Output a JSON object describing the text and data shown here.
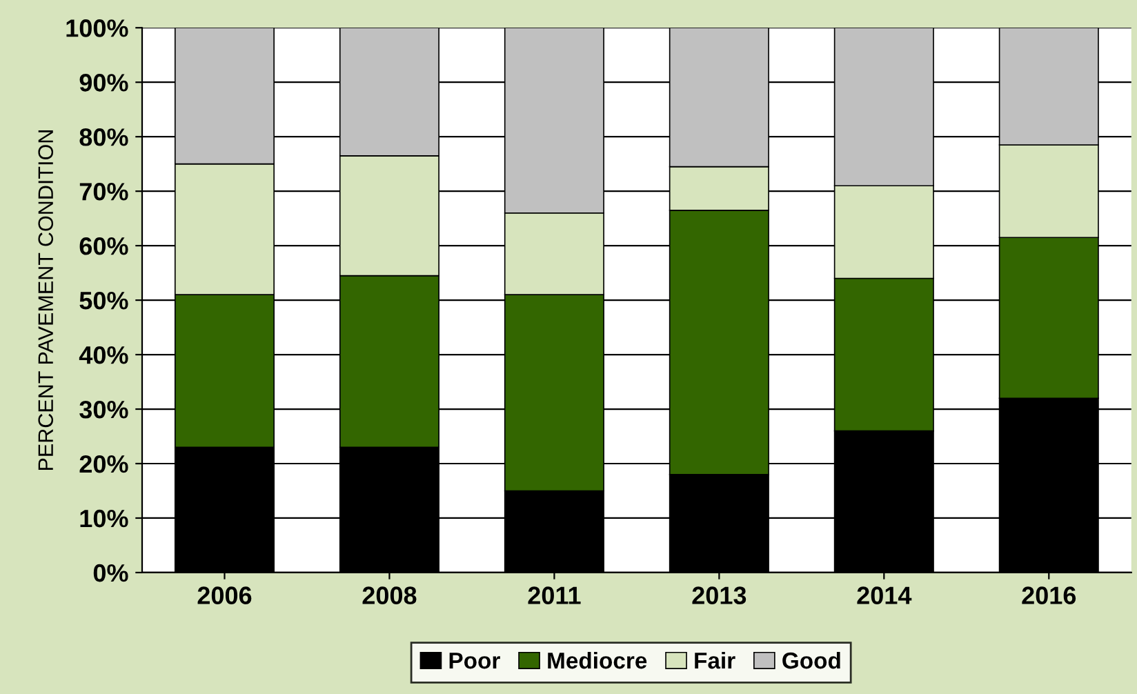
{
  "chart_data": {
    "type": "bar",
    "stacked": true,
    "ylabel": "PERCENT PAVEMENT CONDITION",
    "categories": [
      "2006",
      "2008",
      "2011",
      "2013",
      "2014",
      "2016"
    ],
    "series": [
      {
        "name": "Poor",
        "color": "#000000",
        "values": [
          23,
          23,
          15,
          18,
          26,
          32
        ]
      },
      {
        "name": "Mediocre",
        "color": "#336600",
        "values": [
          28,
          31.5,
          36,
          48.5,
          28,
          29.5
        ]
      },
      {
        "name": "Fair",
        "color": "#d7e4bd",
        "values": [
          24,
          22,
          15,
          8,
          17,
          17
        ]
      },
      {
        "name": "Good",
        "color": "#c0c0c0",
        "values": [
          25,
          23.5,
          34,
          25.5,
          29,
          21.5
        ]
      }
    ],
    "ylim": [
      0,
      100
    ],
    "yticks": [
      {
        "value": 0,
        "label": "0%"
      },
      {
        "value": 10,
        "label": "10%"
      },
      {
        "value": 20,
        "label": "20%"
      },
      {
        "value": 30,
        "label": "30%"
      },
      {
        "value": 40,
        "label": "40%"
      },
      {
        "value": 50,
        "label": "50%"
      },
      {
        "value": 60,
        "label": "60%"
      },
      {
        "value": 70,
        "label": "70%"
      },
      {
        "value": 80,
        "label": "80%"
      },
      {
        "value": 90,
        "label": "90%"
      },
      {
        "value": 100,
        "label": "100%"
      }
    ],
    "grid": "y",
    "legend": "bottom"
  }
}
